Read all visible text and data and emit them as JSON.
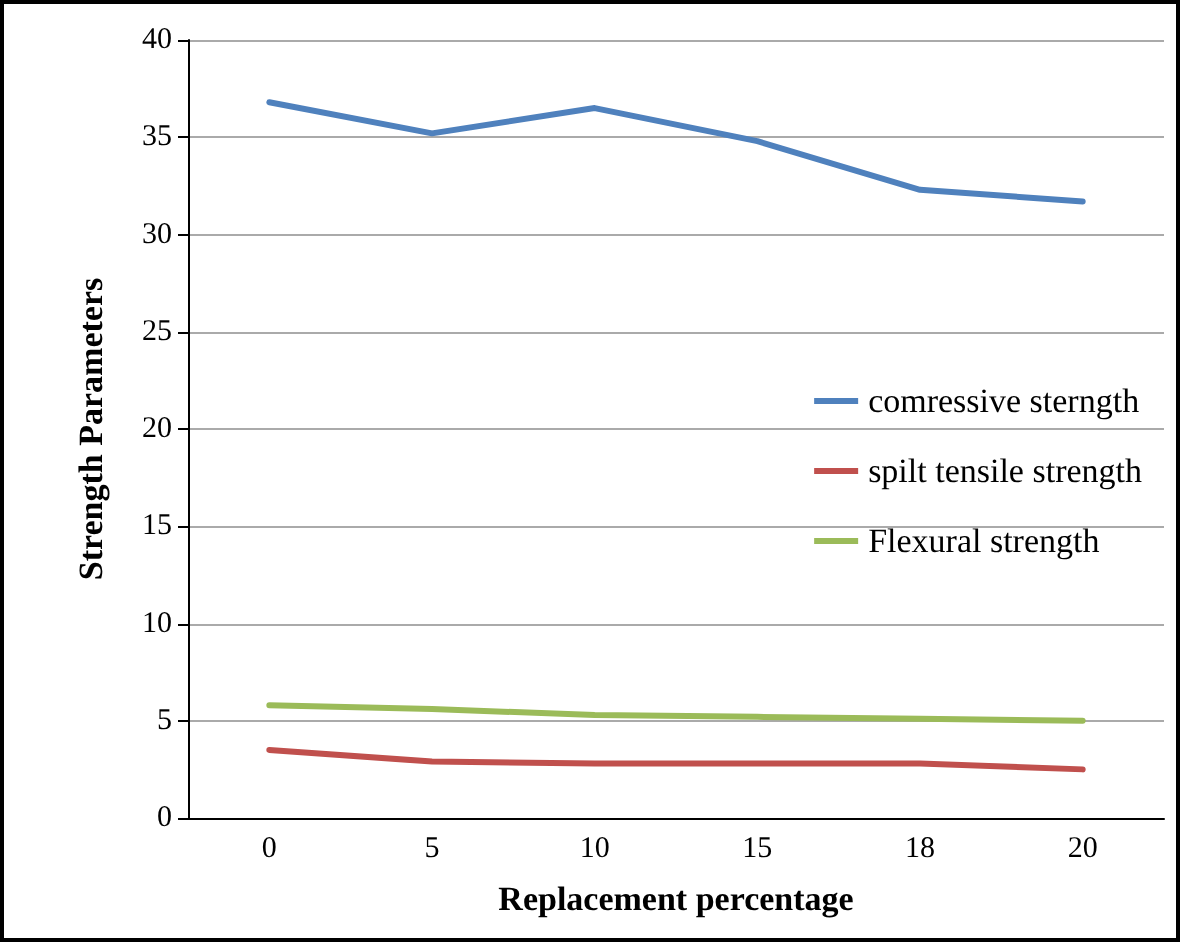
{
  "chart_data": {
    "type": "line",
    "xlabel": "Replacement percentage",
    "ylabel": "Strength Parameters",
    "categories": [
      "0",
      "5",
      "10",
      "15",
      "18",
      "20"
    ],
    "series": [
      {
        "name": "comressive sterngth",
        "color": "#4f81bd",
        "values": [
          36.8,
          35.2,
          36.5,
          34.8,
          32.3,
          31.7
        ]
      },
      {
        "name": "spilt tensile strength",
        "color": "#c0504d",
        "values": [
          3.5,
          2.9,
          2.8,
          2.8,
          2.8,
          2.5
        ]
      },
      {
        "name": "Flexural strength",
        "color": "#9bbb59",
        "values": [
          5.8,
          5.6,
          5.3,
          5.2,
          5.1,
          5.0
        ]
      }
    ],
    "ylim": [
      0,
      40
    ],
    "yticks": [
      0,
      5,
      10,
      15,
      20,
      25,
      30,
      35,
      40
    ],
    "grid": "y",
    "legend": "right",
    "marker": "none",
    "line_style": "solid"
  }
}
